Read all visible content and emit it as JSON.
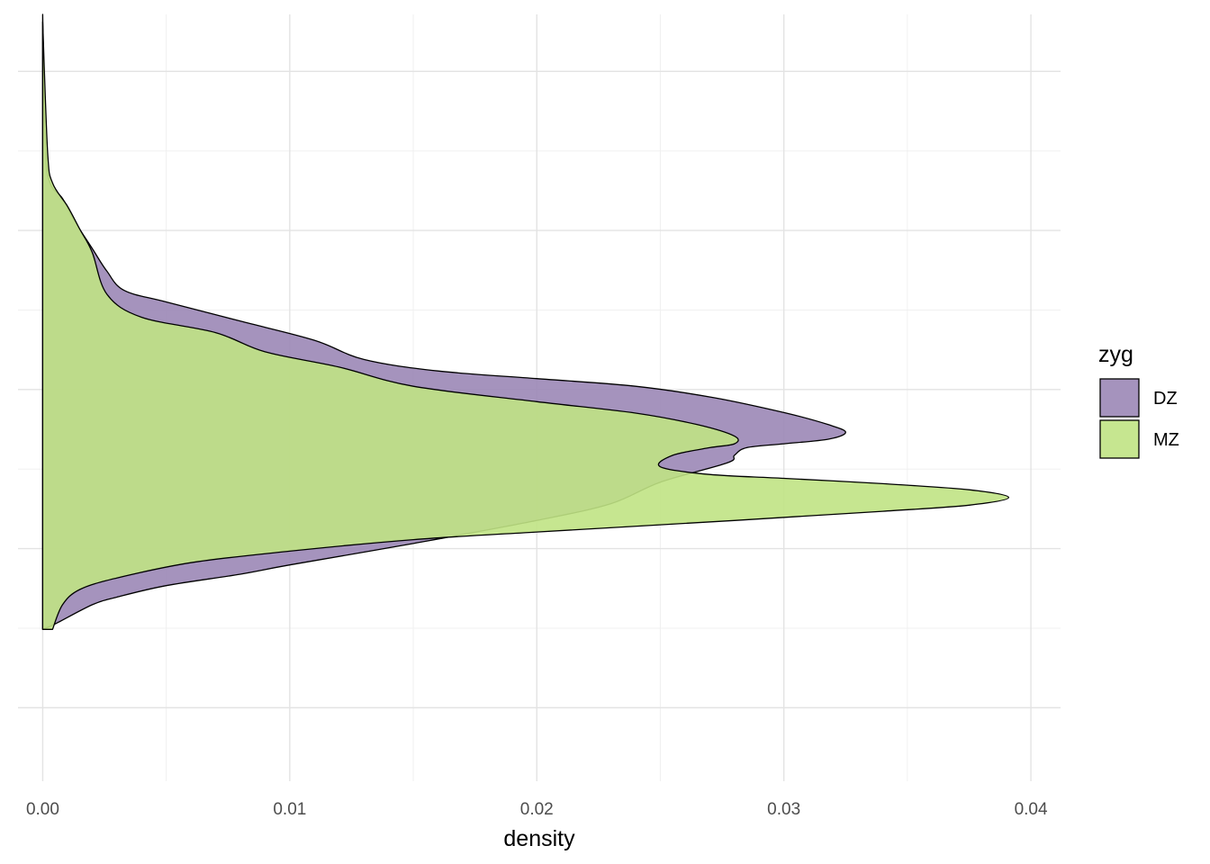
{
  "chart_data": {
    "type": "area",
    "orientation": "horizontal-density",
    "xlabel": "density",
    "ylabel": "",
    "xlim": [
      -0.001,
      0.0412
    ],
    "ylim": [
      0,
      1
    ],
    "x_ticks": [
      0.0,
      0.01,
      0.02,
      0.03,
      0.04
    ],
    "x_tick_labels": [
      "0.00",
      "0.01",
      "0.02",
      "0.03",
      "0.04"
    ],
    "y_grid_major": [
      0.0958,
      0.3033,
      0.5108,
      0.7182,
      0.9257
    ],
    "y_grid_minor": [
      0.1995,
      0.407,
      0.6145,
      0.8219
    ],
    "y_tick_labels": [],
    "grid": true,
    "legend": {
      "title": "zyg",
      "placement": "right"
    },
    "series": [
      {
        "name": "DZ",
        "color": "#9b87b6",
        "density": [
          [
            0.0,
            1.0
          ],
          [
            0.0001,
            0.83
          ],
          [
            0.0003,
            0.78
          ],
          [
            0.0008,
            0.76
          ],
          [
            0.0013,
            0.73
          ],
          [
            0.002,
            0.695
          ],
          [
            0.0026,
            0.665
          ],
          [
            0.0033,
            0.64
          ],
          [
            0.005,
            0.625
          ],
          [
            0.008,
            0.6
          ],
          [
            0.011,
            0.575
          ],
          [
            0.013,
            0.55
          ],
          [
            0.016,
            0.535
          ],
          [
            0.02,
            0.525
          ],
          [
            0.024,
            0.515
          ],
          [
            0.0272,
            0.5
          ],
          [
            0.0301,
            0.48
          ],
          [
            0.0318,
            0.465
          ],
          [
            0.0325,
            0.455
          ],
          [
            0.0318,
            0.446
          ],
          [
            0.03,
            0.44
          ],
          [
            0.0285,
            0.435
          ],
          [
            0.028,
            0.425
          ],
          [
            0.0277,
            0.415
          ],
          [
            0.025,
            0.39
          ],
          [
            0.023,
            0.362
          ],
          [
            0.02,
            0.34
          ],
          [
            0.015,
            0.31
          ],
          [
            0.01,
            0.282
          ],
          [
            0.008,
            0.27
          ],
          [
            0.005,
            0.255
          ],
          [
            0.003,
            0.24
          ],
          [
            0.002,
            0.23
          ],
          [
            0.0005,
            0.205
          ],
          [
            0.0,
            0.198
          ]
        ]
      },
      {
        "name": "MZ",
        "color": "#c0e384",
        "density": [
          [
            0.0,
            0.99
          ],
          [
            0.0002,
            0.82
          ],
          [
            0.0004,
            0.78
          ],
          [
            0.001,
            0.75
          ],
          [
            0.0015,
            0.72
          ],
          [
            0.002,
            0.69
          ],
          [
            0.0026,
            0.635
          ],
          [
            0.004,
            0.605
          ],
          [
            0.007,
            0.585
          ],
          [
            0.009,
            0.56
          ],
          [
            0.012,
            0.54
          ],
          [
            0.015,
            0.515
          ],
          [
            0.02,
            0.495
          ],
          [
            0.024,
            0.48
          ],
          [
            0.0265,
            0.465
          ],
          [
            0.028,
            0.45
          ],
          [
            0.028,
            0.44
          ],
          [
            0.027,
            0.435
          ],
          [
            0.0255,
            0.425
          ],
          [
            0.025,
            0.41
          ],
          [
            0.027,
            0.4
          ],
          [
            0.03,
            0.395
          ],
          [
            0.034,
            0.388
          ],
          [
            0.0375,
            0.38
          ],
          [
            0.0391,
            0.37
          ],
          [
            0.0375,
            0.36
          ],
          [
            0.034,
            0.352
          ],
          [
            0.028,
            0.34
          ],
          [
            0.02,
            0.325
          ],
          [
            0.015,
            0.315
          ],
          [
            0.01,
            0.3
          ],
          [
            0.006,
            0.285
          ],
          [
            0.003,
            0.265
          ],
          [
            0.0015,
            0.25
          ],
          [
            0.0008,
            0.23
          ],
          [
            0.0004,
            0.198
          ]
        ]
      }
    ]
  }
}
